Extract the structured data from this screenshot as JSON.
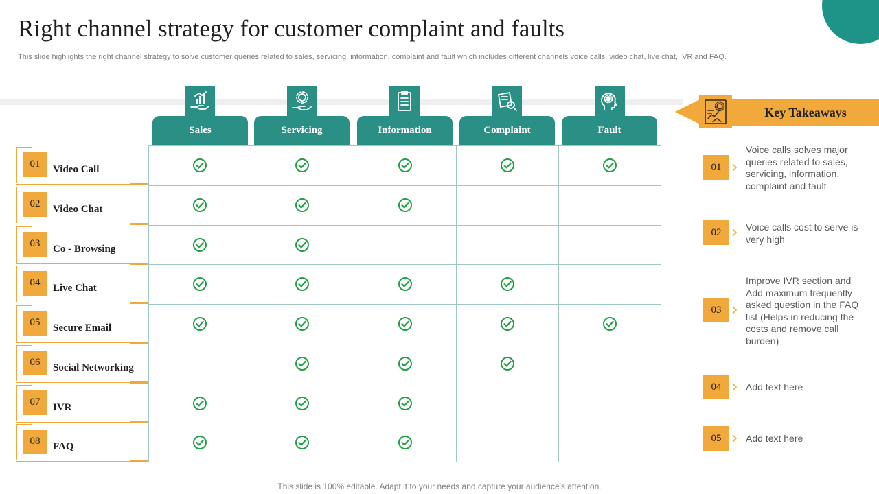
{
  "title": "Right channel strategy for customer complaint and faults",
  "subtitle": "This slide highlights the right channel strategy to solve customer queries related to sales, servicing, information, complaint and fault which includes different channels voice calls, video chat, live chat, IVR and FAQ.",
  "columns": [
    {
      "label": "Sales",
      "icon": "hand-chart-icon"
    },
    {
      "label": "Servicing",
      "icon": "hand-gear-icon"
    },
    {
      "label": "Information",
      "icon": "clipboard-icon"
    },
    {
      "label": "Complaint",
      "icon": "document-search-icon"
    },
    {
      "label": "Fault",
      "icon": "head-gear-icon"
    }
  ],
  "rows": [
    {
      "num": "01",
      "label": "Video Call",
      "checks": [
        true,
        true,
        true,
        true,
        true
      ]
    },
    {
      "num": "02",
      "label": "Video Chat",
      "checks": [
        true,
        true,
        true,
        false,
        false
      ]
    },
    {
      "num": "03",
      "label": "Co - Browsing",
      "checks": [
        true,
        true,
        false,
        false,
        false
      ]
    },
    {
      "num": "04",
      "label": "Live Chat",
      "checks": [
        true,
        true,
        true,
        true,
        false
      ]
    },
    {
      "num": "05",
      "label": "Secure Email",
      "checks": [
        true,
        true,
        true,
        true,
        true
      ]
    },
    {
      "num": "06",
      "label": "Social Networking",
      "checks": [
        false,
        true,
        true,
        true,
        false
      ]
    },
    {
      "num": "07",
      "label": "IVR",
      "checks": [
        true,
        true,
        true,
        false,
        false
      ]
    },
    {
      "num": "08",
      "label": "FAQ",
      "checks": [
        true,
        true,
        true,
        false,
        false
      ]
    }
  ],
  "takeaways": {
    "title": "Key Takeaways",
    "items": [
      {
        "num": "01",
        "text": "Voice calls solves major queries related to sales, servicing, information, complaint and fault"
      },
      {
        "num": "02",
        "text": "Voice calls cost to serve is very high"
      },
      {
        "num": "03",
        "text": "Improve IVR section and Add maximum frequently asked question in the FAQ list (Helps in reducing the costs and remove call burden)"
      },
      {
        "num": "04",
        "text": "Add text here"
      },
      {
        "num": "05",
        "text": "Add text here"
      }
    ]
  },
  "footer": "This slide is 100% editable. Adapt it to your needs and capture your audience's attention.",
  "colors": {
    "teal": "#2a8f84",
    "orange": "#f2a93b",
    "check": "#22a045"
  }
}
